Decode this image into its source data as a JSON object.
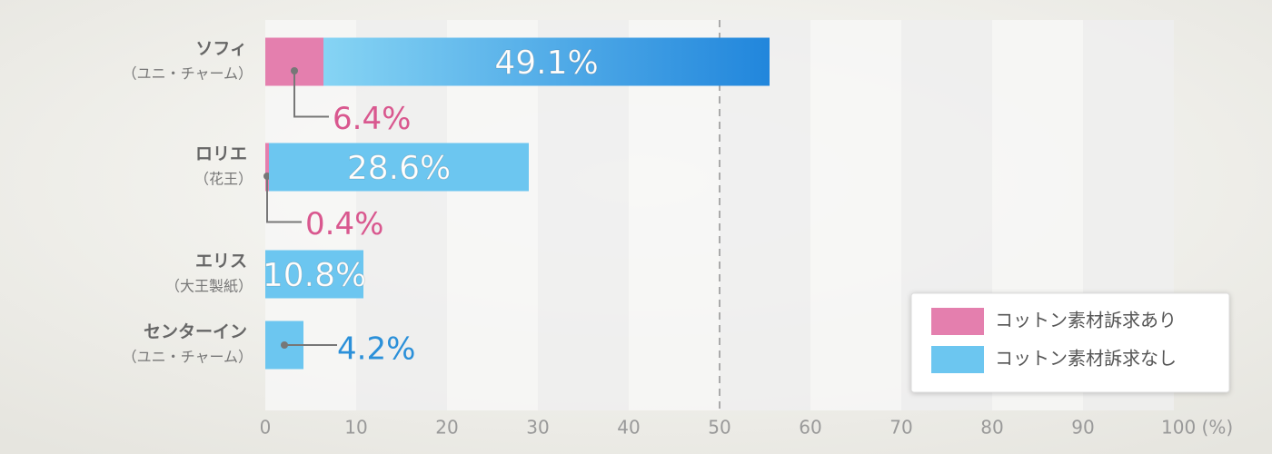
{
  "chart_data": {
    "type": "stacked-bar-horizontal",
    "categories": [
      "ソフィ",
      "ロリエ",
      "エリス",
      "センターイン"
    ],
    "category_sublabels": [
      "（ユニ・チャーム）",
      "（花王）",
      "（大王製紙）",
      "（ユニ・チャーム）"
    ],
    "series": [
      {
        "name": "コットン素材訴求あり",
        "color": "#e47fae",
        "label_color": "#d9588f",
        "values": [
          6.4,
          0.4,
          null,
          null
        ],
        "value_labels": [
          "6.4%",
          "0.4%",
          null,
          null
        ]
      },
      {
        "name": "コットン素材訴求なし",
        "color": "#6cc6f0",
        "label_color": "#2b90d9",
        "values": [
          49.1,
          28.6,
          10.8,
          4.2
        ],
        "value_labels": [
          "49.1%",
          "28.6%",
          "10.8%",
          "4.2%"
        ]
      }
    ],
    "xlim": [
      0,
      100
    ],
    "xticks": [
      0,
      10,
      20,
      30,
      40,
      50,
      60,
      70,
      80,
      90,
      {
        "value": 100,
        "label": "100 (%)"
      }
    ],
    "reference_line": 50,
    "legend": "bottom-right"
  }
}
